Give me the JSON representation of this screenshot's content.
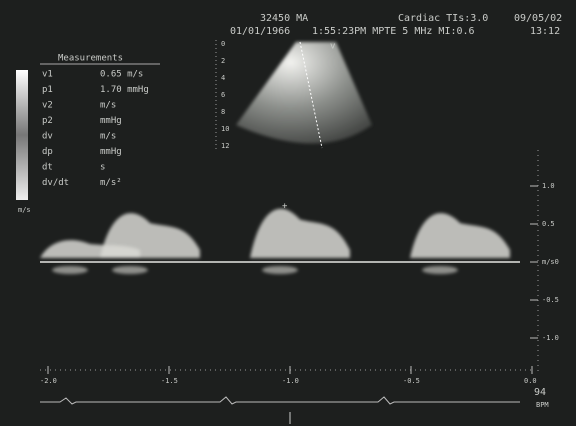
{
  "header": {
    "id": "32450 MA",
    "mode": "Cardiac TIs:3.0",
    "date": "09/05/02",
    "birth_date": "01/01/1966",
    "settings": "1:55:23PM MPTE 5 MHz  MI:0.6",
    "time": "13:12"
  },
  "measurements": {
    "title": "Measurements",
    "rows": [
      [
        "v1",
        "0.65 m/s"
      ],
      [
        "p1",
        "1.70 mmHg"
      ],
      [
        "v2",
        "m/s"
      ],
      [
        "p2",
        "mmHg"
      ],
      [
        "dv",
        "m/s"
      ],
      [
        "dp",
        "mmHg"
      ],
      [
        "dt",
        "s"
      ],
      [
        "dv/dt",
        "m/s²"
      ]
    ]
  },
  "color_bar_unit": "m/s",
  "sector_depth": [
    "0",
    "2",
    "4",
    "6",
    "8",
    "10",
    "12"
  ],
  "velocity_scale": {
    "labels": [
      "1.0",
      "0.5",
      "m/s0",
      "-0.5",
      "-1.0"
    ]
  },
  "time_scale": {
    "labels": [
      "-2.0",
      "-1.5",
      "-1.0",
      "-0.5",
      "0.0"
    ]
  },
  "heart_rate": {
    "value": "94",
    "unit": "BPM"
  }
}
